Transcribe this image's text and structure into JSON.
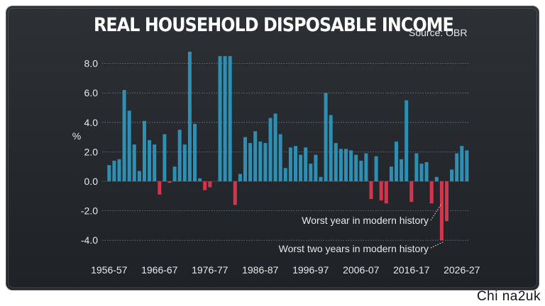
{
  "title": "REAL HOUSEHOLD DISPOSABLE INCOME",
  "source": "Source: OBR",
  "watermark": "Chi na2uk",
  "colors": {
    "positive": "#2e8fb3",
    "negative": "#d2354c",
    "background": "#2a2d32",
    "grid": "#7b7f86",
    "text": "#e8e8e8"
  },
  "chart_data": {
    "type": "bar",
    "title": "REAL HOUSEHOLD DISPOSABLE INCOME",
    "ylabel": "%",
    "ylim": [
      -4.4,
      9.0
    ],
    "yticks": [
      -4.0,
      -2.0,
      0.0,
      2.0,
      4.0,
      6.0,
      8.0
    ],
    "ytick_labels": [
      "-4.0",
      "-2.0",
      "0.0",
      "2.0",
      "4.0",
      "6.0",
      "8.0"
    ],
    "grid": true,
    "first_year": 1956,
    "xtick_labels": [
      {
        "label": "1956-57",
        "index": 0
      },
      {
        "label": "1966-67",
        "index": 10
      },
      {
        "label": "1976-77",
        "index": 20
      },
      {
        "label": "1986-87",
        "index": 30
      },
      {
        "label": "1996-97",
        "index": 40
      },
      {
        "label": "2006-07",
        "index": 50
      },
      {
        "label": "2016-17",
        "index": 60
      },
      {
        "label": "2026-27",
        "index": 70
      }
    ],
    "values": [
      1.1,
      1.4,
      1.5,
      6.2,
      4.8,
      2.5,
      0.7,
      4.1,
      2.8,
      2.5,
      -0.9,
      3.2,
      -0.1,
      1.0,
      3.5,
      2.5,
      8.8,
      3.9,
      0.2,
      -0.6,
      -0.4,
      null,
      8.5,
      8.5,
      8.5,
      -1.6,
      0.5,
      3.0,
      2.6,
      3.4,
      2.7,
      2.6,
      4.3,
      4.6,
      3.2,
      0.9,
      2.3,
      2.4,
      1.8,
      2.3,
      1.2,
      1.8,
      0.3,
      6.0,
      4.5,
      2.6,
      2.2,
      2.2,
      2.1,
      1.8,
      1.4,
      1.9,
      -1.2,
      1.7,
      -1.3,
      -1.5,
      1.0,
      2.7,
      1.5,
      5.5,
      -1.4,
      1.9,
      1.2,
      1.3,
      -1.5,
      0.3,
      -4.0,
      -2.7,
      0.8,
      1.9,
      2.4,
      2.1
    ],
    "annotations": [
      {
        "text": "Worst year in modern history",
        "target_index": 66
      },
      {
        "text": "Worst two years in modern history",
        "target_index": 67
      }
    ]
  }
}
